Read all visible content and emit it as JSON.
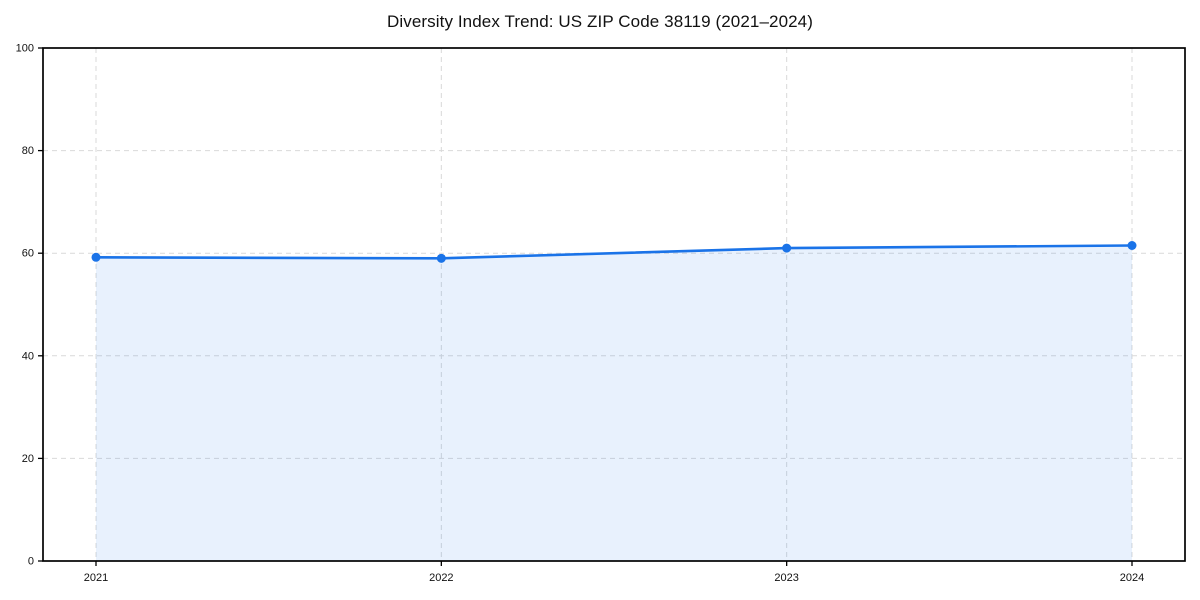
{
  "page": {
    "background_color": "#ffffff"
  },
  "chart_data": {
    "type": "line",
    "title": "Diversity Index Trend: US ZIP Code 38119 (2021–2024)",
    "x": [
      2021,
      2022,
      2023,
      2024
    ],
    "xtick_labels": [
      "2021",
      "2022",
      "2023",
      "2024"
    ],
    "series": [
      {
        "name": "Diversity Index",
        "values": [
          59.2,
          59.0,
          61.0,
          61.5
        ]
      }
    ],
    "xlabel": "",
    "ylabel": "",
    "ylim": [
      0,
      100
    ],
    "yticks": [
      0,
      20,
      40,
      60,
      80,
      100
    ],
    "grid": true,
    "grid_style": "dashed",
    "legend_position": "none",
    "marker": "circle",
    "area_fill": true,
    "style": {
      "line_color": "#1a73e8",
      "marker_color": "#1a73e8",
      "area_fill_color": "#1a73e8",
      "area_fill_opacity": 0.1,
      "grid_color": "#d9d9d9",
      "axis_color": "#000000",
      "text_color": "#111111"
    }
  }
}
